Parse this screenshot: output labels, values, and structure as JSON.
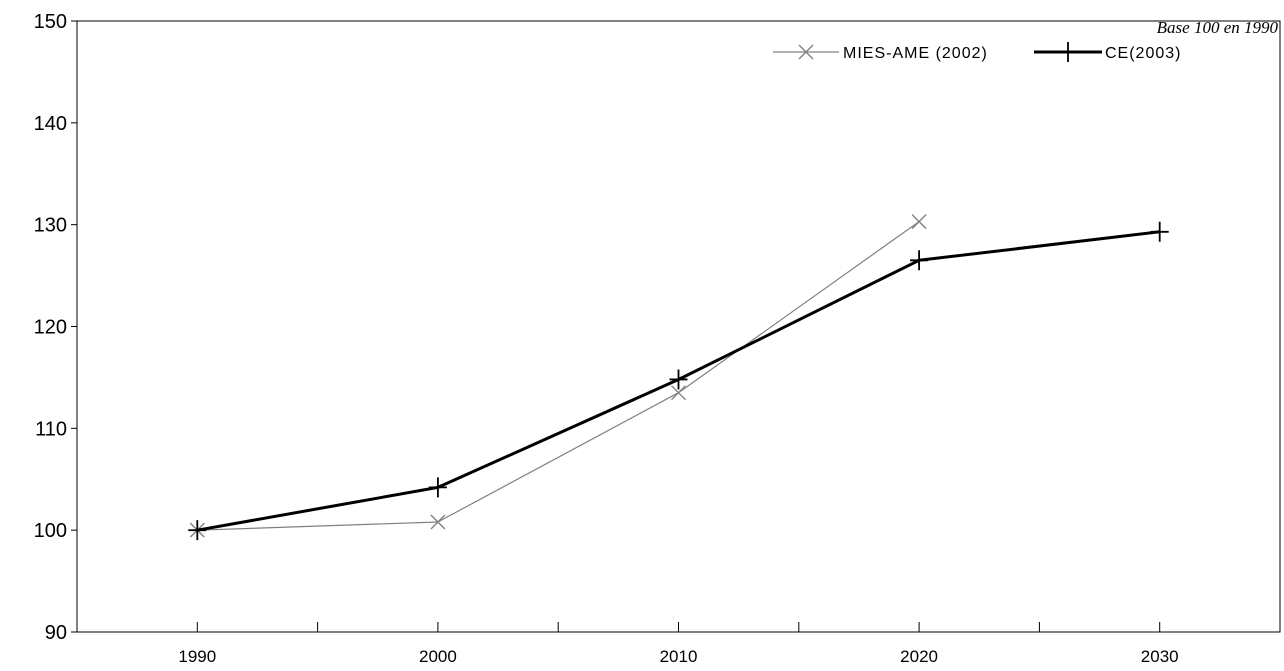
{
  "note": "Base 100 en 1990",
  "chart_data": {
    "type": "line",
    "title": "",
    "xlabel": "",
    "ylabel": "",
    "x": [
      1990,
      2000,
      2010,
      2020,
      2030
    ],
    "ylim": [
      90,
      150
    ],
    "xlim": [
      1985,
      2035
    ],
    "yticks": [
      90,
      100,
      110,
      120,
      130,
      140,
      150
    ],
    "xticks": [
      1990,
      2000,
      2010,
      2020,
      2030
    ],
    "grid": false,
    "legend_position": "top-right",
    "series": [
      {
        "name": "MIES-AME (2002)",
        "x": [
          1990,
          2000,
          2010,
          2020
        ],
        "values": [
          100,
          100.8,
          113.5,
          130.3
        ],
        "color": "#808080",
        "marker": "x"
      },
      {
        "name": "CE(2003)",
        "x": [
          1990,
          2000,
          2010,
          2020,
          2030
        ],
        "values": [
          100,
          104.2,
          114.8,
          126.5,
          129.3
        ],
        "color": "#000000",
        "marker": "+"
      }
    ]
  }
}
